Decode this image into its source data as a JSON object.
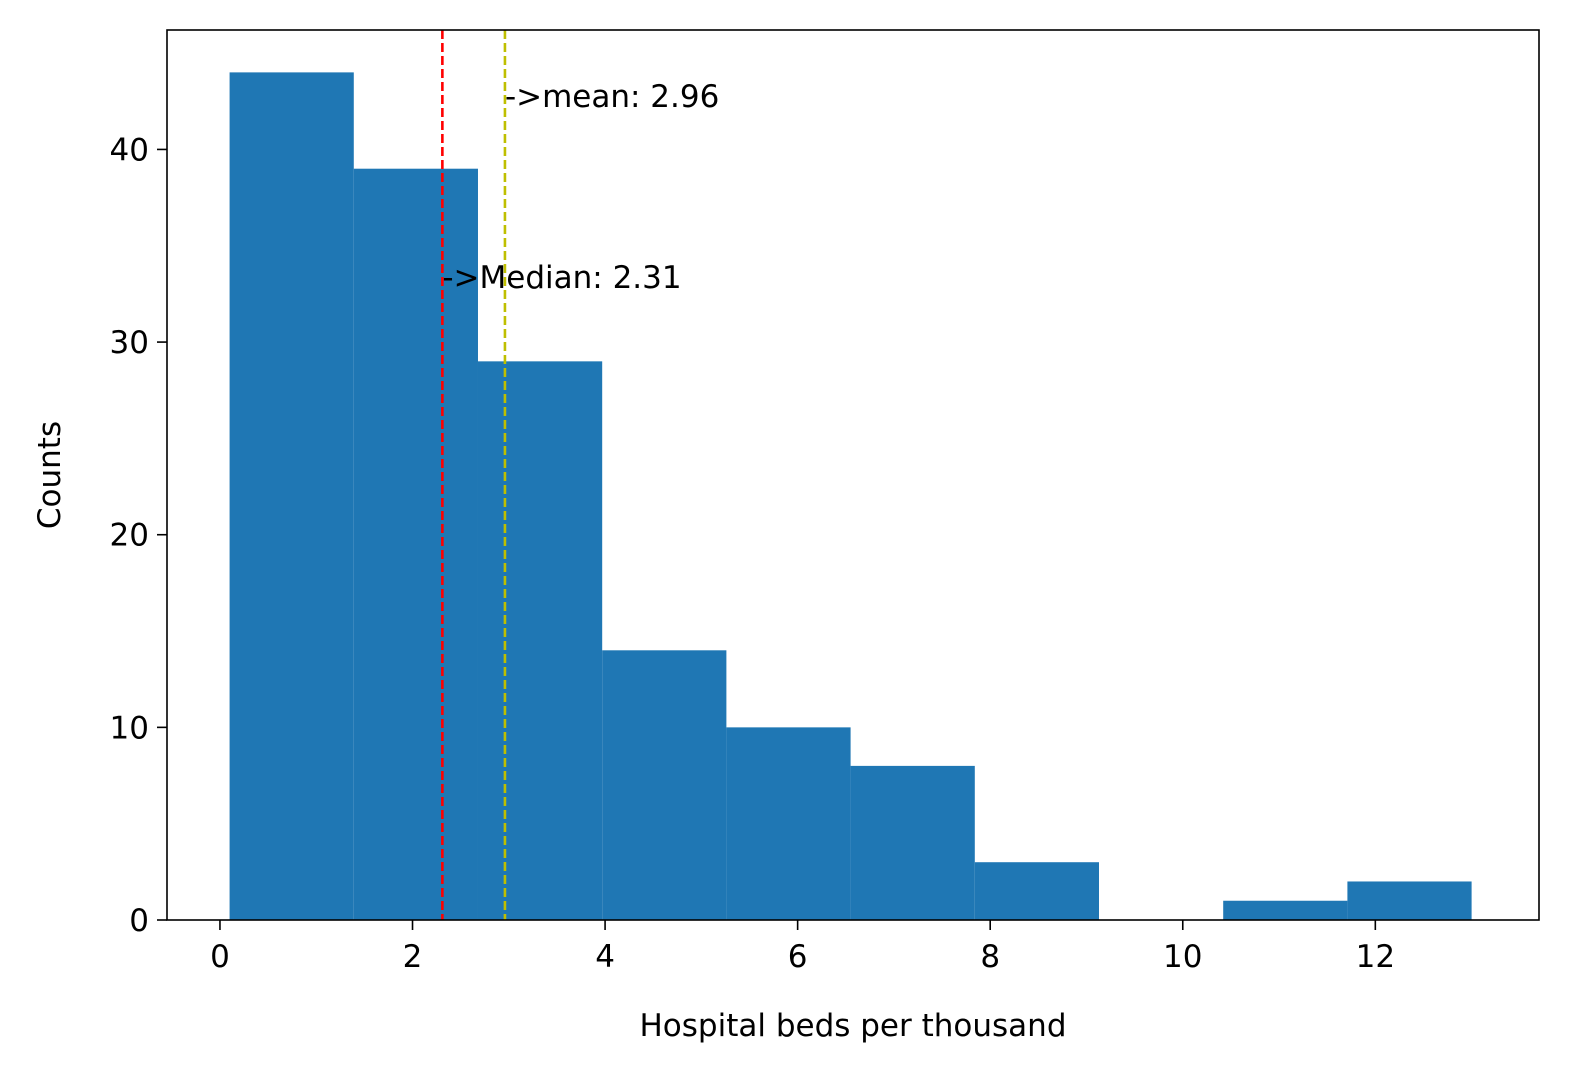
{
  "chart_data": {
    "type": "bar",
    "subtype": "histogram",
    "xlabel": "Hospital beds per thousand",
    "ylabel": "Counts",
    "xlim": [
      -0.55,
      13.7
    ],
    "ylim": [
      0,
      46.2
    ],
    "xticks": [
      0,
      2,
      4,
      6,
      8,
      10,
      12
    ],
    "yticks": [
      0,
      10,
      20,
      30,
      40
    ],
    "bin_edges": [
      0.1,
      1.39,
      2.68,
      3.97,
      5.26,
      6.55,
      7.84,
      9.13,
      10.42,
      11.71,
      13.0
    ],
    "counts": [
      44,
      39,
      29,
      14,
      10,
      8,
      3,
      0,
      1,
      2
    ],
    "bar_color": "#1f77b4",
    "grid": false,
    "reference_lines": [
      {
        "name": "median",
        "x": 2.31,
        "color": "#ff0000",
        "style": "dashed",
        "label": "->Median: 2.31",
        "label_y": 32.8
      },
      {
        "name": "mean",
        "x": 2.96,
        "color": "#bfbf00",
        "style": "dashed",
        "label": "->mean: 2.96",
        "label_y": 42.2
      }
    ]
  }
}
